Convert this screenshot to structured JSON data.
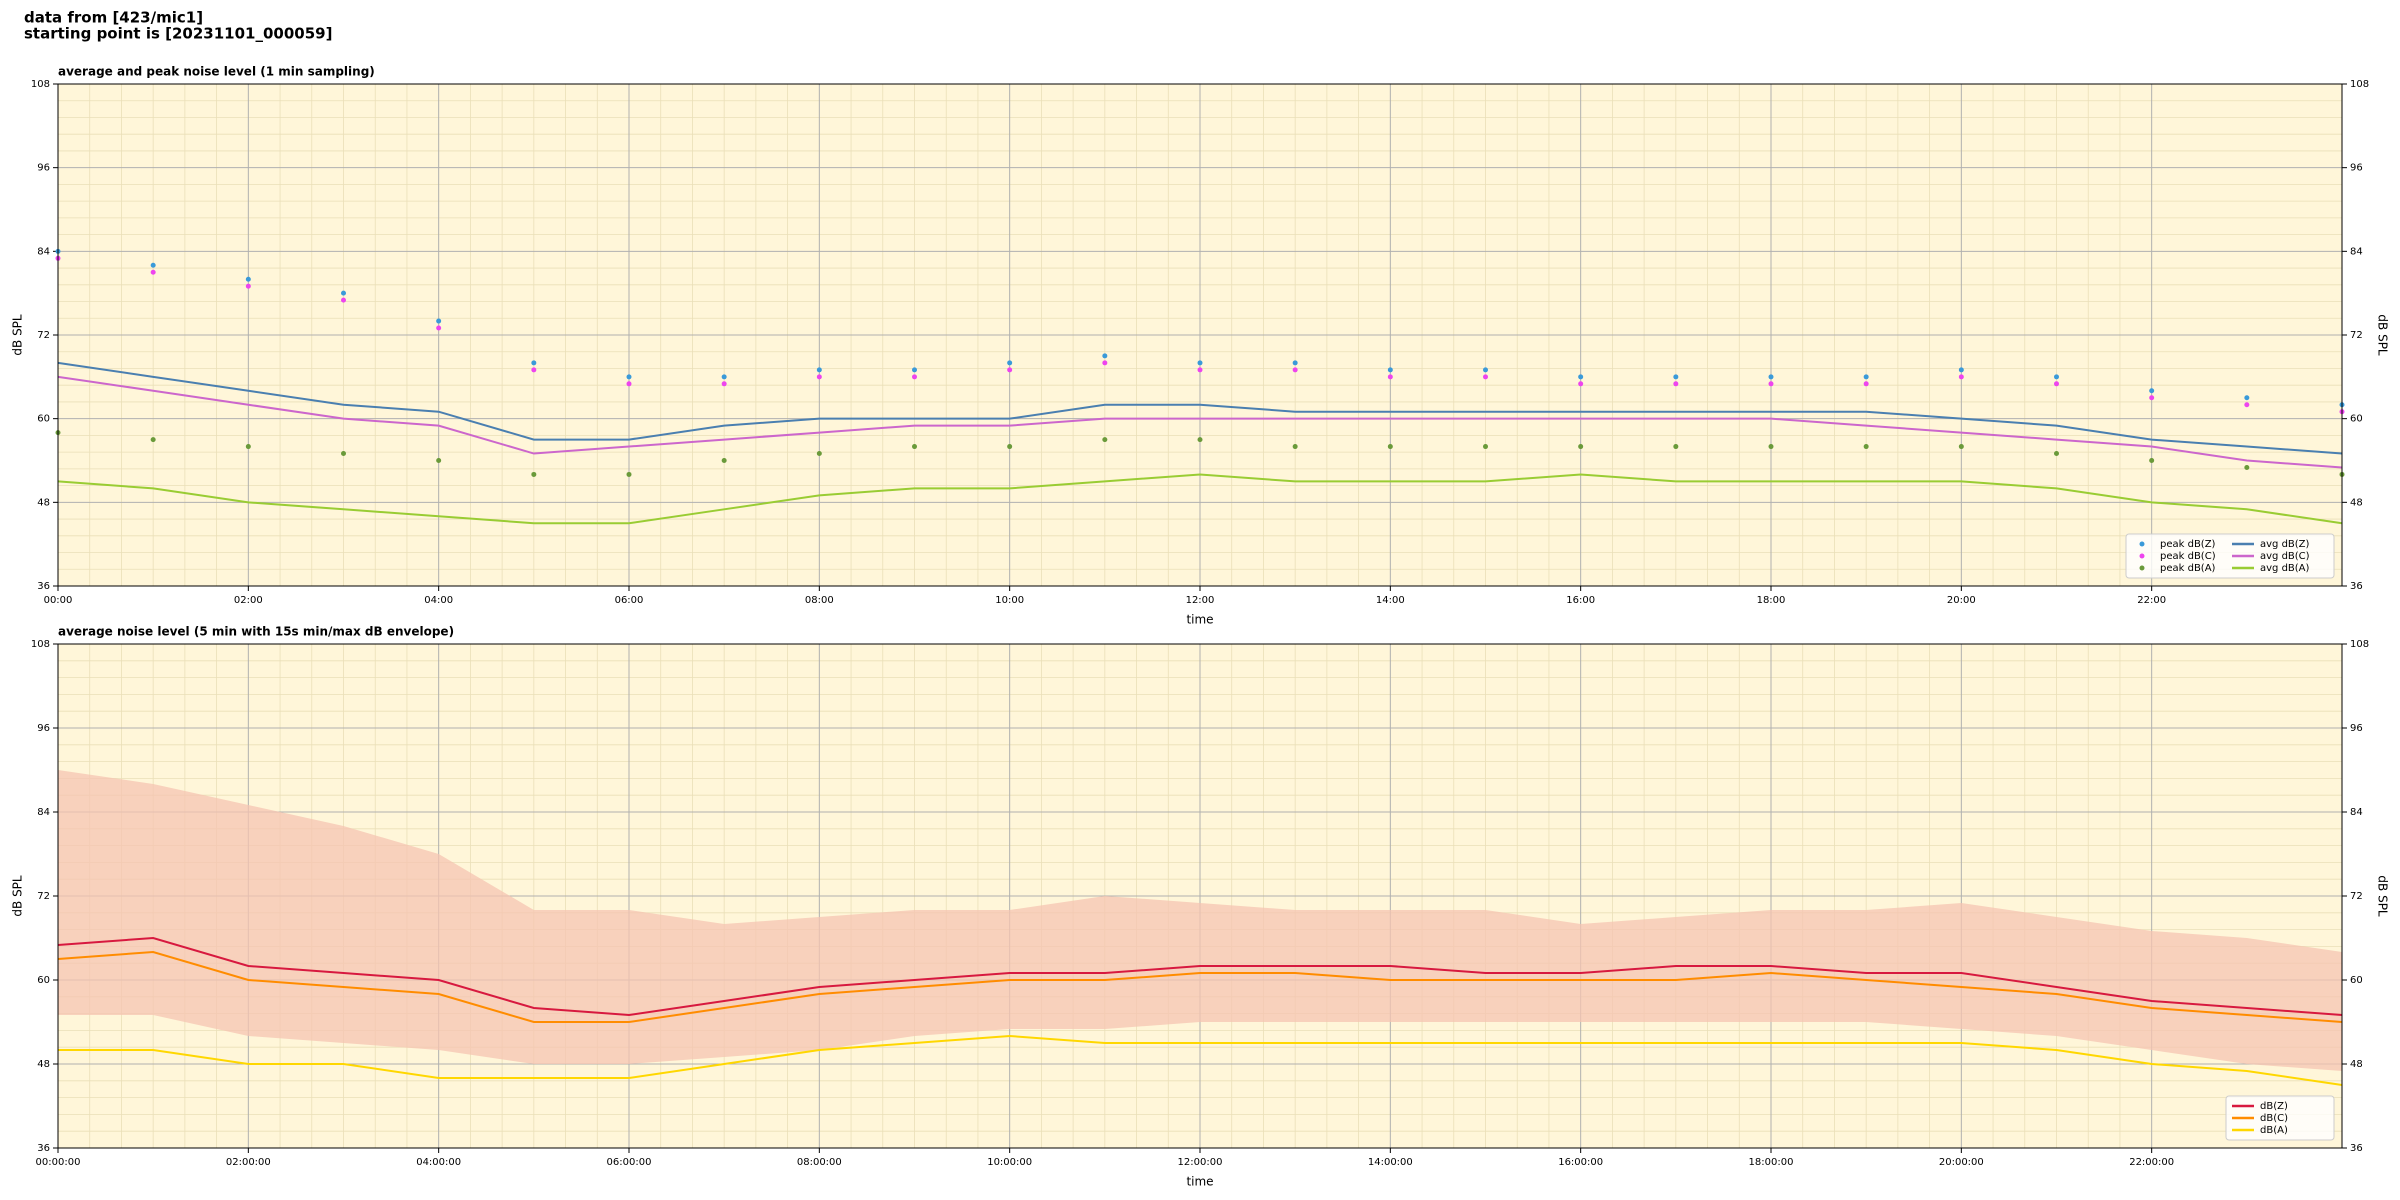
{
  "header": {
    "line1": "data from [423/mic1]",
    "line2": "starting point is [20231101_000059]"
  },
  "chart_data": [
    {
      "type": "line",
      "title": "average and peak noise level (1 min sampling)",
      "xlabel": "time",
      "ylabel": "dB SPL",
      "y2label": "dB SPL",
      "x": [
        0,
        1,
        2,
        3,
        4,
        5,
        6,
        7,
        8,
        9,
        10,
        11,
        12,
        13,
        14,
        15,
        16,
        17,
        18,
        19,
        20,
        21,
        22,
        23,
        24
      ],
      "xlim": [
        0,
        24
      ],
      "xticks": [
        {
          "value": 0,
          "label": "00:00"
        },
        {
          "value": 2,
          "label": "02:00"
        },
        {
          "value": 4,
          "label": "04:00"
        },
        {
          "value": 6,
          "label": "06:00"
        },
        {
          "value": 8,
          "label": "08:00"
        },
        {
          "value": 10,
          "label": "10:00"
        },
        {
          "value": 12,
          "label": "12:00"
        },
        {
          "value": 14,
          "label": "14:00"
        },
        {
          "value": 16,
          "label": "16:00"
        },
        {
          "value": 18,
          "label": "18:00"
        },
        {
          "value": 20,
          "label": "20:00"
        },
        {
          "value": 22,
          "label": "22:00"
        }
      ],
      "ylim": [
        36,
        108
      ],
      "yticks": [
        36,
        48,
        60,
        72,
        84,
        96,
        108
      ],
      "y2lim": [
        36,
        108
      ],
      "y2ticks": [
        36,
        48,
        60,
        72,
        84,
        96,
        108
      ],
      "grid": true,
      "background": "#fff6d9",
      "legend": "lower right",
      "legend_columns": 2,
      "series": [
        {
          "name": "peak dB(Z)",
          "kind": "scatter",
          "color": "#3a9ad9",
          "values": [
            84,
            82,
            80,
            78,
            74,
            68,
            66,
            66,
            67,
            67,
            68,
            69,
            68,
            68,
            67,
            67,
            66,
            66,
            66,
            66,
            67,
            66,
            64,
            63,
            62
          ]
        },
        {
          "name": "peak dB(C)",
          "kind": "scatter",
          "color": "#ee44ee",
          "values": [
            83,
            81,
            79,
            77,
            73,
            67,
            65,
            65,
            66,
            66,
            67,
            68,
            67,
            67,
            66,
            66,
            65,
            65,
            65,
            65,
            66,
            65,
            63,
            62,
            61
          ]
        },
        {
          "name": "peak dB(A)",
          "kind": "scatter",
          "color": "#6a9a3a",
          "values": [
            58,
            57,
            56,
            55,
            54,
            52,
            52,
            54,
            55,
            56,
            56,
            57,
            57,
            56,
            56,
            56,
            56,
            56,
            56,
            56,
            56,
            55,
            54,
            53,
            52
          ]
        },
        {
          "name": "avg dB(Z)",
          "kind": "line",
          "color": "#4a7fb0",
          "values": [
            68,
            66,
            64,
            62,
            61,
            57,
            57,
            59,
            60,
            60,
            60,
            62,
            62,
            61,
            61,
            61,
            61,
            61,
            61,
            61,
            60,
            59,
            57,
            56,
            55
          ]
        },
        {
          "name": "avg dB(C)",
          "kind": "line",
          "color": "#cc66cc",
          "values": [
            66,
            64,
            62,
            60,
            59,
            55,
            56,
            57,
            58,
            59,
            59,
            60,
            60,
            60,
            60,
            60,
            60,
            60,
            60,
            59,
            58,
            57,
            56,
            54,
            53
          ]
        },
        {
          "name": "avg dB(A)",
          "kind": "line",
          "color": "#99cc33",
          "values": [
            51,
            50,
            48,
            47,
            46,
            45,
            45,
            47,
            49,
            50,
            50,
            51,
            52,
            51,
            51,
            51,
            52,
            51,
            51,
            51,
            51,
            50,
            48,
            47,
            45
          ]
        }
      ]
    },
    {
      "type": "line",
      "title": "average noise level (5 min with 15s min/max dB envelope)",
      "xlabel": "time",
      "ylabel": "dB SPL",
      "y2label": "dB SPL",
      "x": [
        0,
        1,
        2,
        3,
        4,
        5,
        6,
        7,
        8,
        9,
        10,
        11,
        12,
        13,
        14,
        15,
        16,
        17,
        18,
        19,
        20,
        21,
        22,
        23,
        24
      ],
      "xlim": [
        0,
        24
      ],
      "xticks": [
        {
          "value": 0,
          "label": "00:00:00"
        },
        {
          "value": 2,
          "label": "02:00:00"
        },
        {
          "value": 4,
          "label": "04:00:00"
        },
        {
          "value": 6,
          "label": "06:00:00"
        },
        {
          "value": 8,
          "label": "08:00:00"
        },
        {
          "value": 10,
          "label": "10:00:00"
        },
        {
          "value": 12,
          "label": "12:00:00"
        },
        {
          "value": 14,
          "label": "14:00:00"
        },
        {
          "value": 16,
          "label": "16:00:00"
        },
        {
          "value": 18,
          "label": "18:00:00"
        },
        {
          "value": 20,
          "label": "20:00:00"
        },
        {
          "value": 22,
          "label": "22:00:00"
        }
      ],
      "ylim": [
        36,
        108
      ],
      "yticks": [
        36,
        48,
        60,
        72,
        84,
        96,
        108
      ],
      "y2lim": [
        36,
        108
      ],
      "y2ticks": [
        36,
        48,
        60,
        72,
        84,
        96,
        108
      ],
      "grid": true,
      "background": "#fff6d9",
      "legend": "lower right",
      "legend_columns": 1,
      "envelope": {
        "color": "#f5c4b2",
        "max": [
          90,
          88,
          85,
          82,
          78,
          70,
          70,
          68,
          69,
          70,
          70,
          72,
          71,
          70,
          70,
          70,
          68,
          69,
          70,
          70,
          71,
          69,
          67,
          66,
          64
        ],
        "min": [
          55,
          55,
          52,
          51,
          50,
          48,
          48,
          49,
          50,
          52,
          53,
          53,
          54,
          54,
          54,
          54,
          54,
          54,
          54,
          54,
          53,
          52,
          50,
          48,
          47
        ]
      },
      "series": [
        {
          "name": "dB(Z)",
          "kind": "line",
          "color": "#d7193f",
          "values": [
            65,
            66,
            62,
            61,
            60,
            56,
            55,
            57,
            59,
            60,
            61,
            61,
            62,
            62,
            62,
            61,
            61,
            62,
            62,
            61,
            61,
            59,
            57,
            56,
            55
          ]
        },
        {
          "name": "dB(C)",
          "kind": "line",
          "color": "#ff8c00",
          "values": [
            63,
            64,
            60,
            59,
            58,
            54,
            54,
            56,
            58,
            59,
            60,
            60,
            61,
            61,
            60,
            60,
            60,
            60,
            61,
            60,
            59,
            58,
            56,
            55,
            54
          ]
        },
        {
          "name": "dB(A)",
          "kind": "line",
          "color": "#ffd700",
          "values": [
            50,
            50,
            48,
            48,
            46,
            46,
            46,
            48,
            50,
            51,
            52,
            51,
            51,
            51,
            51,
            51,
            51,
            51,
            51,
            51,
            51,
            50,
            48,
            47,
            45
          ]
        }
      ]
    }
  ]
}
